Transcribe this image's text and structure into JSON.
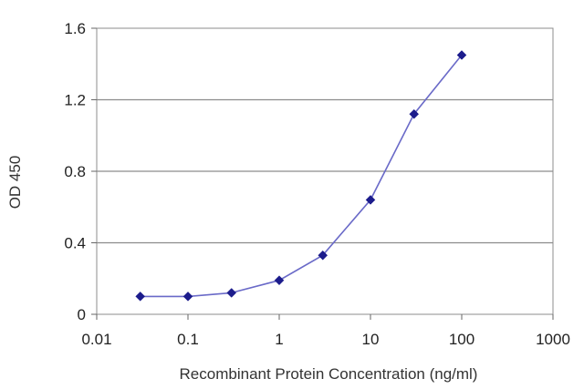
{
  "chart_data": {
    "type": "line",
    "title": "",
    "xlabel": "Recombinant Protein Concentration (ng/ml)",
    "ylabel": "OD 450",
    "x_scale": "log",
    "xlim": [
      0.01,
      1000
    ],
    "ylim": [
      0,
      1.6
    ],
    "x_ticks": [
      {
        "value": 0.01,
        "label": "0.01"
      },
      {
        "value": 0.1,
        "label": "0.1"
      },
      {
        "value": 1,
        "label": "1"
      },
      {
        "value": 10,
        "label": "10"
      },
      {
        "value": 100,
        "label": "100"
      },
      {
        "value": 1000,
        "label": "1000"
      }
    ],
    "y_ticks": [
      {
        "value": 0,
        "label": "0"
      },
      {
        "value": 0.4,
        "label": "0.4"
      },
      {
        "value": 0.8,
        "label": "0.8"
      },
      {
        "value": 1.2,
        "label": "1.2"
      },
      {
        "value": 1.6,
        "label": "1.6"
      }
    ],
    "grid": "horizontal",
    "legend": "none",
    "series": [
      {
        "color": "#1c1c8c",
        "marker": "diamond",
        "points": [
          {
            "x": 0.03,
            "y": 0.1
          },
          {
            "x": 0.1,
            "y": 0.1
          },
          {
            "x": 0.3,
            "y": 0.12
          },
          {
            "x": 1,
            "y": 0.19
          },
          {
            "x": 3,
            "y": 0.33
          },
          {
            "x": 10,
            "y": 0.64
          },
          {
            "x": 30,
            "y": 1.12
          },
          {
            "x": 100,
            "y": 1.45
          }
        ]
      }
    ]
  }
}
